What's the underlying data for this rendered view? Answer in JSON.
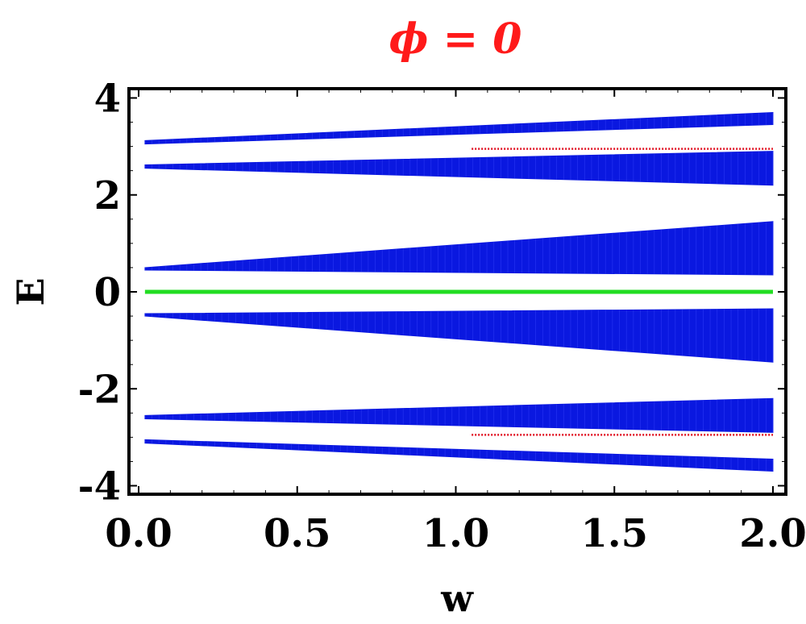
{
  "chart_data": {
    "type": "scatter",
    "title": "ϕ = 0",
    "xlabel": "w",
    "ylabel": "E",
    "xlim": [
      0.0,
      2.0
    ],
    "ylim": [
      -4.0,
      4.0
    ],
    "x_ticks": [
      "0.0",
      "0.5",
      "1.0",
      "1.5",
      "2.0"
    ],
    "x_tick_values": [
      0.0,
      0.5,
      1.0,
      1.5,
      2.0
    ],
    "y_ticks": [
      "4",
      "2",
      "0",
      "-2",
      "-4"
    ],
    "y_tick_values": [
      4,
      2,
      0,
      -2,
      -4
    ],
    "grid": false,
    "x_start": 0.02,
    "x_end": 2.0,
    "series": [
      {
        "color": "#0a18e0",
        "bands": [
          {
            "lower_start": 3.05,
            "upper_start": 3.12,
            "lower_end": 3.45,
            "upper_end": 3.7
          },
          {
            "lower_start": 2.55,
            "upper_start": 2.62,
            "lower_end": 2.2,
            "upper_end": 2.9
          },
          {
            "lower_start": 0.45,
            "upper_start": 0.5,
            "lower_end": 0.35,
            "upper_end": 1.45
          },
          {
            "lower_start": -0.5,
            "upper_start": -0.45,
            "lower_end": -1.45,
            "upper_end": -0.35
          },
          {
            "lower_start": -2.62,
            "upper_start": -2.55,
            "lower_end": -2.9,
            "upper_end": -2.2
          },
          {
            "lower_start": -3.12,
            "upper_start": -3.05,
            "lower_end": -3.7,
            "upper_end": -3.45
          }
        ]
      },
      {
        "color": "#e01020",
        "lines": [
          {
            "x_from": 1.05,
            "x_to": 2.0,
            "y": 2.95
          },
          {
            "x_from": 1.05,
            "x_to": 2.0,
            "y": -2.95
          }
        ]
      },
      {
        "color": "#22dd22",
        "lines": [
          {
            "x_from": 0.02,
            "x_to": 2.0,
            "y": 0.0
          }
        ]
      }
    ]
  }
}
